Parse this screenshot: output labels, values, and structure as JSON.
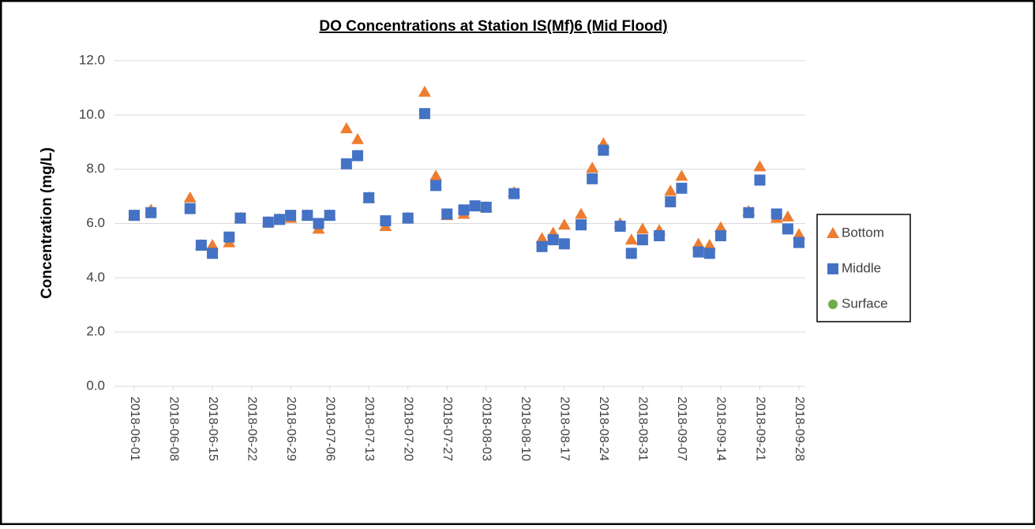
{
  "chart_data": {
    "type": "scatter",
    "title": "DO Concentrations at Station IS(Mf)6 (Mid Flood)",
    "y_label": "Concentration (mg/L)",
    "x": [
      "2018-06-01",
      "2018-06-04",
      "2018-06-11",
      "2018-06-13",
      "2018-06-15",
      "2018-06-18",
      "2018-06-20",
      "2018-06-25",
      "2018-06-27",
      "2018-06-29",
      "2018-07-02",
      "2018-07-04",
      "2018-07-06",
      "2018-07-09",
      "2018-07-11",
      "2018-07-13",
      "2018-07-16",
      "2018-07-20",
      "2018-07-23",
      "2018-07-25",
      "2018-07-27",
      "2018-07-30",
      "2018-08-01",
      "2018-08-03",
      "2018-08-08",
      "2018-08-13",
      "2018-08-15",
      "2018-08-17",
      "2018-08-20",
      "2018-08-22",
      "2018-08-24",
      "2018-08-27",
      "2018-08-29",
      "2018-08-31",
      "2018-09-03",
      "2018-09-05",
      "2018-09-07",
      "2018-09-10",
      "2018-09-12",
      "2018-09-14",
      "2018-09-19",
      "2018-09-21",
      "2018-09-24",
      "2018-09-26",
      "2018-09-28"
    ],
    "series": [
      {
        "name": "Bottom",
        "color": "#ed7d31",
        "marker": "triangle",
        "values": [
          6.3,
          6.5,
          6.95,
          5.2,
          5.2,
          5.3,
          6.2,
          6.05,
          6.15,
          6.2,
          6.3,
          5.8,
          6.3,
          9.5,
          9.1,
          6.95,
          5.9,
          6.2,
          10.85,
          7.75,
          6.3,
          6.35,
          6.65,
          6.6,
          7.15,
          5.45,
          5.65,
          5.95,
          6.35,
          8.05,
          8.95,
          6.0,
          5.4,
          5.8,
          5.75,
          7.2,
          7.75,
          5.25,
          5.2,
          5.85,
          6.45,
          8.1,
          6.2,
          6.25,
          5.6
        ]
      },
      {
        "name": "Middle",
        "color": "#4472c4",
        "marker": "square",
        "values": [
          6.3,
          6.4,
          6.55,
          5.2,
          4.9,
          5.5,
          6.2,
          6.05,
          6.15,
          6.3,
          6.3,
          6.0,
          6.3,
          8.2,
          8.5,
          6.95,
          6.1,
          6.2,
          10.05,
          7.4,
          6.35,
          6.5,
          6.65,
          6.6,
          7.1,
          5.15,
          5.4,
          5.25,
          5.95,
          7.65,
          8.7,
          5.9,
          4.9,
          5.4,
          5.55,
          6.8,
          7.3,
          4.95,
          4.9,
          5.55,
          6.4,
          7.6,
          6.35,
          5.8,
          5.3
        ]
      },
      {
        "name": "Surface",
        "color": "#70ad47",
        "marker": "circle",
        "values": [
          null,
          null,
          null,
          null,
          null,
          null,
          null,
          null,
          null,
          null,
          null,
          null,
          null,
          null,
          null,
          null,
          null,
          null,
          null,
          null,
          null,
          null,
          null,
          null,
          null,
          null,
          null,
          null,
          null,
          null,
          null,
          null,
          null,
          null,
          null,
          null,
          null,
          null,
          null,
          null,
          null,
          null,
          null,
          null,
          null
        ]
      }
    ],
    "xlim": [
      "2018-06-01",
      "2018-09-28"
    ],
    "xticks": [
      "2018-06-01",
      "2018-06-08",
      "2018-06-15",
      "2018-06-22",
      "2018-06-29",
      "2018-07-06",
      "2018-07-13",
      "2018-07-20",
      "2018-07-27",
      "2018-08-03",
      "2018-08-10",
      "2018-08-17",
      "2018-08-24",
      "2018-08-31",
      "2018-09-07",
      "2018-09-14",
      "2018-09-21",
      "2018-09-28"
    ],
    "ylim": [
      0,
      12
    ],
    "yticks": [
      {
        "value": 0,
        "label": "0.0"
      },
      {
        "value": 2,
        "label": "2.0"
      },
      {
        "value": 4,
        "label": "4.0"
      },
      {
        "value": 6,
        "label": "6.0"
      },
      {
        "value": 8,
        "label": "8.0"
      },
      {
        "value": 10,
        "label": "10.0"
      },
      {
        "value": 12,
        "label": "12.0"
      }
    ],
    "grid": true,
    "legend": "right"
  }
}
